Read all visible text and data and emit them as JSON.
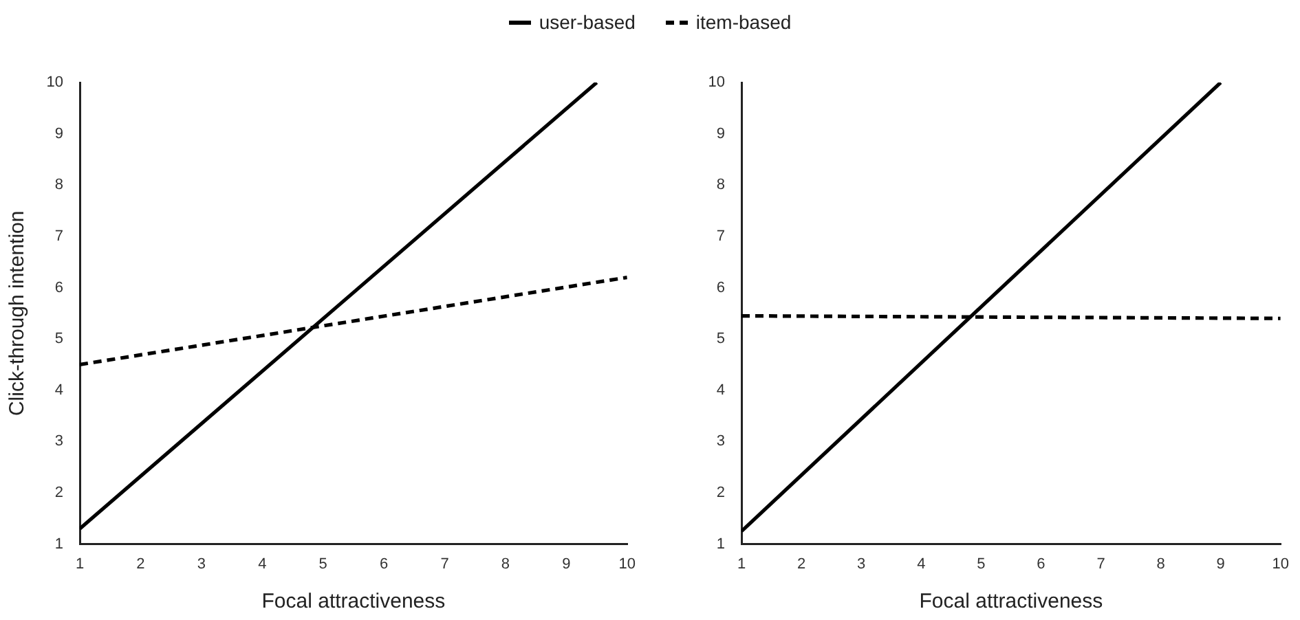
{
  "chart_data": [
    {
      "type": "line",
      "xlabel": "Focal attractiveness",
      "ylabel": "Click-through intention",
      "xlim": [
        1,
        10
      ],
      "xticks": [
        1,
        2,
        3,
        4,
        5,
        6,
        7,
        8,
        9,
        10
      ],
      "ylim": [
        1,
        10
      ],
      "yticks": [
        1,
        2,
        3,
        4,
        5,
        6,
        7,
        8,
        9,
        10
      ],
      "grid": false,
      "legend": "top",
      "marker": "none",
      "series": [
        {
          "name": "user-based",
          "color": "#000000",
          "line_style": "solid",
          "x": [
            1,
            9.5
          ],
          "values": [
            1.3,
            10
          ]
        },
        {
          "name": "item-based",
          "color": "#000000",
          "line_style": "dashed",
          "x": [
            1,
            10
          ],
          "values": [
            4.5,
            6.2
          ]
        }
      ]
    },
    {
      "type": "line",
      "xlabel": "Focal attractiveness",
      "xlim": [
        1,
        10
      ],
      "xticks": [
        1,
        2,
        3,
        4,
        5,
        6,
        7,
        8,
        9,
        10
      ],
      "ylim": [
        1,
        10
      ],
      "yticks": [
        1,
        2,
        3,
        4,
        5,
        6,
        7,
        8,
        9,
        10
      ],
      "grid": false,
      "marker": "none",
      "series": [
        {
          "color": "#000000",
          "line_style": "solid",
          "x": [
            1,
            9
          ],
          "values": [
            1.25,
            10
          ]
        },
        {
          "color": "#000000",
          "line_style": "dashed",
          "x": [
            1,
            10
          ],
          "values": [
            5.45,
            5.4
          ]
        }
      ]
    }
  ]
}
